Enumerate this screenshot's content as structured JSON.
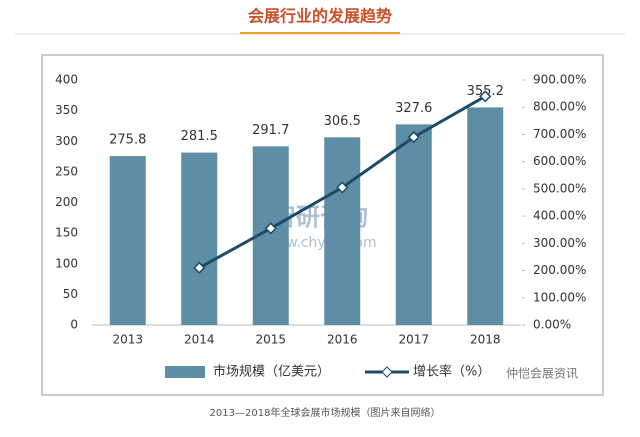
{
  "header_title": "会展行业的发展趋势",
  "caption": "2013—2018年全球会展市场规模（图片来自网络）",
  "watermarks": [
    "智研咨询",
    "www.chyxx.com",
    "仲恺会展资讯"
  ],
  "chart_data": {
    "type": "bar",
    "categories": [
      "2013",
      "2014",
      "2015",
      "2016",
      "2017",
      "2018"
    ],
    "series": [
      {
        "name": "市场规模（亿美元）",
        "type": "bar",
        "color": "#5e8ea6",
        "axis": "y",
        "values": [
          275.8,
          281.5,
          291.7,
          306.5,
          327.6,
          355.2
        ]
      },
      {
        "name": "增长率（%）",
        "type": "line",
        "color": "#1d4a66",
        "axis": "y2",
        "values": [
          null,
          210,
          355,
          505,
          690,
          840
        ]
      }
    ],
    "ylim": [
      0,
      400
    ],
    "yticks": [
      0,
      50,
      100,
      150,
      200,
      250,
      300,
      350,
      400
    ],
    "y2lim": [
      0,
      900
    ],
    "y2ticks": [
      {
        "value": 0,
        "label": "0.00%"
      },
      {
        "value": 100,
        "label": "100.00%"
      },
      {
        "value": 200,
        "label": "200.00%"
      },
      {
        "value": 300,
        "label": "300.00%"
      },
      {
        "value": 400,
        "label": "400.00%"
      },
      {
        "value": 500,
        "label": "500.00%"
      },
      {
        "value": 600,
        "label": "600.00%"
      },
      {
        "value": 700,
        "label": "700.00%"
      },
      {
        "value": 800,
        "label": "800.00%"
      },
      {
        "value": 900,
        "label": "900.00%"
      }
    ],
    "grid": false,
    "legend": "bottom"
  }
}
